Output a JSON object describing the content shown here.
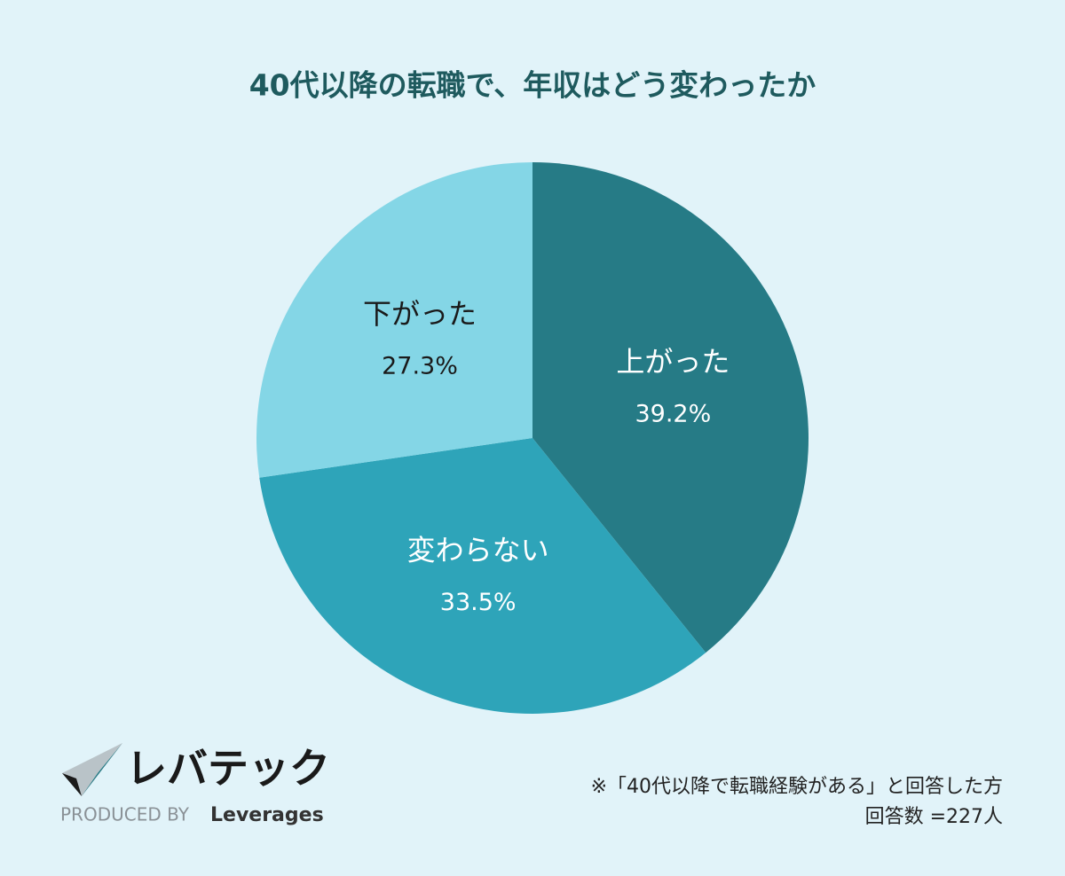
{
  "chart_data": {
    "type": "pie",
    "title": "40代以降の転職で、年収はどう変わったか",
    "categories": [
      "上がった",
      "変わらない",
      "下がった"
    ],
    "values": [
      39.2,
      33.5,
      27.3
    ],
    "value_labels": [
      "39.2%",
      "33.5%",
      "27.3%"
    ],
    "colors": [
      "#267b86",
      "#2ea4b9",
      "#84d6e6"
    ],
    "label_colors": [
      "#ffffff",
      "#ffffff",
      "#1a1a1a"
    ],
    "notes": [
      "※「40代以降で転職経験がある」と回答した方",
      "回答数 =227人"
    ]
  },
  "logo": {
    "name": "レバテック",
    "produced_by": "PRODUCED BY",
    "brand": "Leverages"
  }
}
